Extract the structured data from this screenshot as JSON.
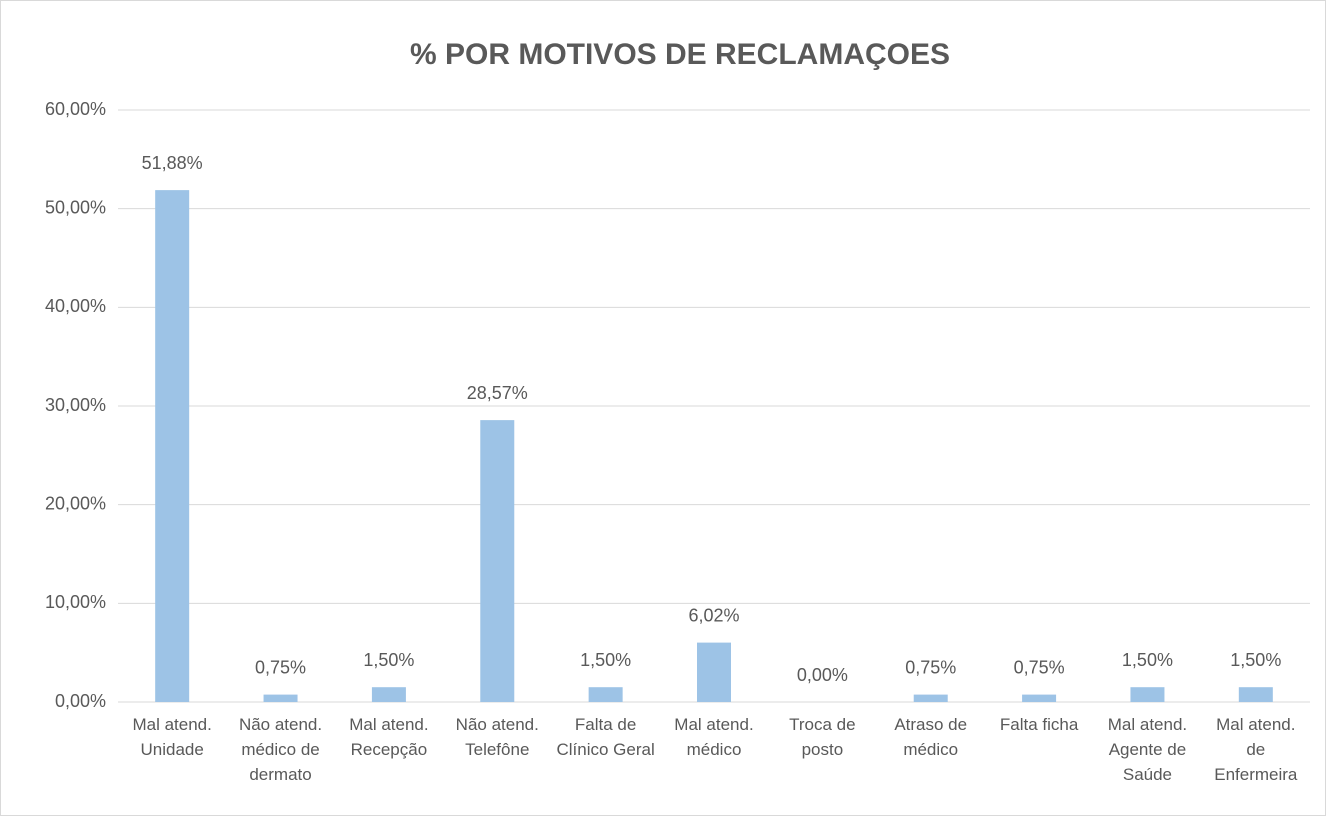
{
  "chart_data": {
    "type": "bar",
    "title": "% POR MOTIVOS DE RECLAMAÇOES",
    "categories": [
      "Mal atend. Unidade",
      "Não atend. médico de dermato",
      "Mal atend. Recepção",
      "Não atend. Telefône",
      "Falta de Clínico Geral",
      "Mal atend. médico",
      "Troca de posto",
      "Atraso de médico",
      "Falta ficha",
      "Mal atend. Agente de Saúde",
      "Mal atend. de Enfermeira"
    ],
    "values": [
      51.88,
      0.75,
      1.5,
      28.57,
      1.5,
      6.02,
      0,
      0.75,
      0.75,
      1.5,
      1.5
    ],
    "value_labels": [
      "51,88%",
      "0,75%",
      "1,50%",
      "28,57%",
      "1,50%",
      "6,02%",
      "0,00%",
      "0,75%",
      "0,75%",
      "1,50%",
      "1,50%"
    ],
    "color": "#9dc3e6",
    "ylim": [
      0,
      60
    ],
    "yticks": [
      {
        "value": 0,
        "label": "0,00%"
      },
      {
        "value": 10,
        "label": "10,00%"
      },
      {
        "value": 20,
        "label": "20,00%"
      },
      {
        "value": 30,
        "label": "30,00%"
      },
      {
        "value": 40,
        "label": "40,00%"
      },
      {
        "value": 50,
        "label": "50,00%"
      },
      {
        "value": 60,
        "label": "60,00%"
      }
    ],
    "grid": true
  }
}
